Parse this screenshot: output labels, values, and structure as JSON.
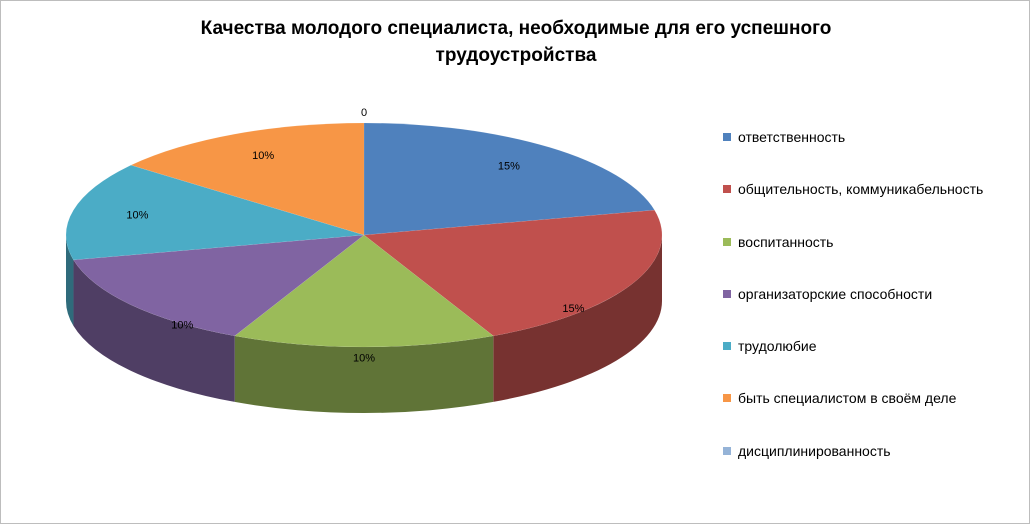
{
  "chart_data": {
    "type": "pie",
    "title_lines": [
      "Качества молодого специалиста, необходимые для его успешного",
      "трудоустройства"
    ],
    "slices": [
      {
        "name": "ответственность",
        "value": 15,
        "label": "15%",
        "color": "#4f81bd"
      },
      {
        "name": "общительность, коммуникабельность",
        "value": 15,
        "label": "15%",
        "color": "#c0504d"
      },
      {
        "name": "воспитанность",
        "value": 10,
        "label": "10%",
        "color": "#9bbb59"
      },
      {
        "name": "организаторские способности",
        "value": 10,
        "label": "10%",
        "color": "#8064a2"
      },
      {
        "name": "трудолюбие",
        "value": 10,
        "label": "10%",
        "color": "#4bacc6"
      },
      {
        "name": "быть специалистом в своём деле",
        "value": 10,
        "label": "10%",
        "color": "#f79646"
      },
      {
        "name": "дисциплинированность",
        "value": 0,
        "label": "0",
        "color": "#95b3d7"
      }
    ],
    "style": "3d",
    "legend_position": "right"
  }
}
